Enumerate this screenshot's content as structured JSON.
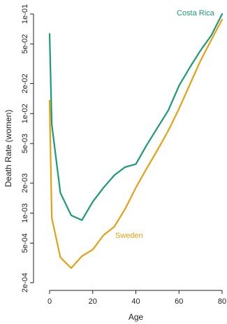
{
  "chart_data": {
    "type": "line",
    "title": "",
    "xlabel": "Age",
    "ylabel": "Death Rate (women)",
    "y_scale": "log",
    "xlim": [
      0,
      80
    ],
    "ylim": [
      0.0002,
      0.1
    ],
    "x_ticks": [
      0,
      20,
      40,
      60,
      80
    ],
    "x_tick_labels": [
      "0",
      "20",
      "40",
      "60",
      "80"
    ],
    "y_ticks": [
      0.0002,
      0.0005,
      0.001,
      0.002,
      0.005,
      0.01,
      0.02,
      0.05,
      0.1
    ],
    "y_tick_labels": [
      "2e-04",
      "5e-04",
      "1e-03",
      "2e-03",
      "5e-03",
      "1e-02",
      "2e-02",
      "5e-02",
      "1e-01"
    ],
    "grid": false,
    "legend": "none (direct labels)",
    "series": [
      {
        "name": "Costa Rica",
        "color": "#1a9a76",
        "x": [
          0,
          1,
          5,
          10,
          15,
          20,
          25,
          30,
          35,
          40,
          45,
          50,
          55,
          60,
          65,
          70,
          75,
          80
        ],
        "y": [
          0.063,
          0.0078,
          0.0016,
          0.00095,
          0.00085,
          0.0013,
          0.0018,
          0.0024,
          0.0029,
          0.0031,
          0.0048,
          0.0072,
          0.0107,
          0.019,
          0.029,
          0.043,
          0.061,
          0.1
        ]
      },
      {
        "name": "Sweden",
        "color": "#e6a014",
        "x": [
          0,
          1,
          5,
          10,
          15,
          20,
          25,
          30,
          35,
          40,
          45,
          50,
          55,
          60,
          65,
          70,
          75,
          80
        ],
        "y": [
          0.0135,
          0.0009,
          0.00036,
          0.00028,
          0.00037,
          0.00043,
          0.0006,
          0.00073,
          0.0011,
          0.0018,
          0.0028,
          0.0043,
          0.0067,
          0.0112,
          0.0195,
          0.034,
          0.055,
          0.088
        ]
      }
    ]
  }
}
